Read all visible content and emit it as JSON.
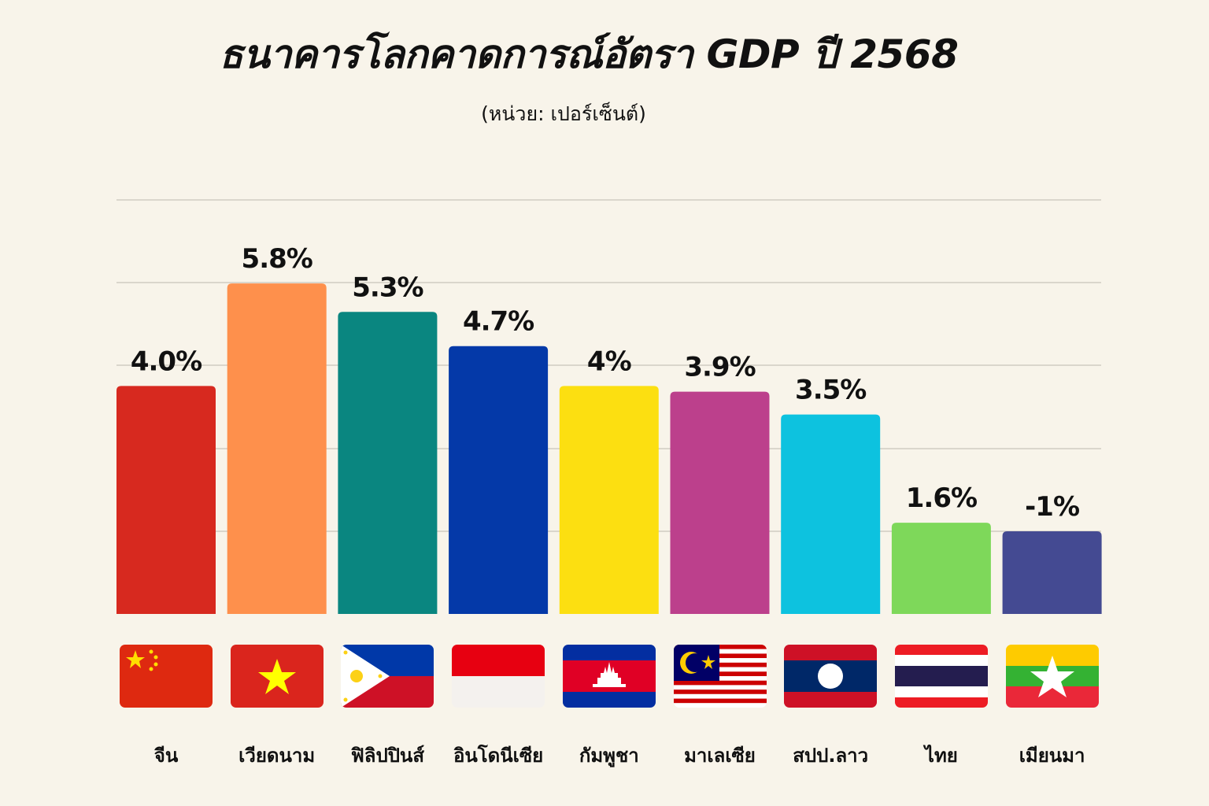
{
  "title": "ธนาคารโลกคาดการณ์อัตรา GDP ปี 2568",
  "subtitle": "(หน่วย: เปอร์เซ็นต์)",
  "chart_data": {
    "type": "bar",
    "title": "ธนาคารโลกคาดการณ์อัตรา GDP ปี 2568",
    "subtitle": "(หน่วย: เปอร์เซ็นต์)",
    "categories": [
      "จีน",
      "เวียดนาม",
      "ฟิลิปปินส์",
      "อินโดนีเซีย",
      "กัมพูชา",
      "มาเลเซีย",
      "สปป.ลาว",
      "ไทย",
      "เมียนมา"
    ],
    "values": [
      4.0,
      5.8,
      5.3,
      4.7,
      4.0,
      3.9,
      3.5,
      1.6,
      -1
    ],
    "labels": [
      "4.0%",
      "5.8%",
      "5.3%",
      "4.7%",
      "4%",
      "3.9%",
      "3.5%",
      "1.6%",
      "-1%"
    ],
    "colors": [
      "#d7291f",
      "#fe904c",
      "#0a8680",
      "#0439a8",
      "#fcdf11",
      "#bc408c",
      "#0dc2df",
      "#7ed85a",
      "#444a92"
    ],
    "flags": [
      "china-flag-icon",
      "vietnam-flag-icon",
      "philippines-flag-icon",
      "indonesia-flag-icon",
      "cambodia-flag-icon",
      "malaysia-flag-icon",
      "laos-flag-icon",
      "thailand-flag-icon",
      "myanmar-flag-icon"
    ],
    "grid": true,
    "legend": "none"
  }
}
